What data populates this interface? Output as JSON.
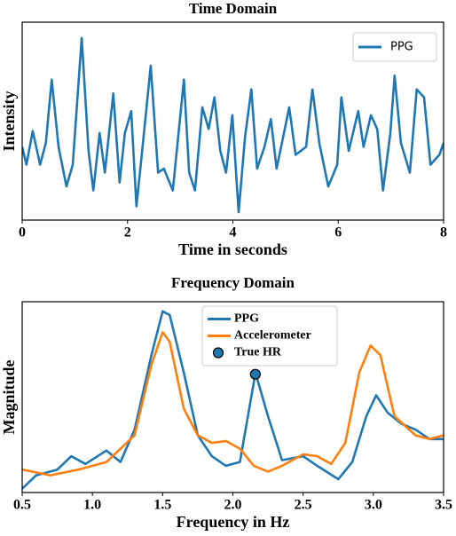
{
  "chart_data": [
    {
      "type": "line",
      "title": "Time Domain",
      "xlabel": "Time in seconds",
      "ylabel": "Intensity",
      "xlim": [
        0,
        8
      ],
      "xticks": [
        0,
        2,
        4,
        6,
        8
      ],
      "ylim": [
        0,
        10
      ],
      "legend": "upper right",
      "legend_font": "sans",
      "series": [
        {
          "name": "PPG",
          "color": "#1f77b4",
          "x": [
            0,
            0.08,
            0.2,
            0.34,
            0.45,
            0.56,
            0.69,
            0.84,
            0.96,
            1.13,
            1.26,
            1.35,
            1.47,
            1.57,
            1.73,
            1.85,
            1.95,
            2.07,
            2.17,
            2.27,
            2.44,
            2.58,
            2.69,
            2.86,
            3.07,
            3.17,
            3.28,
            3.42,
            3.54,
            3.65,
            3.76,
            3.87,
            3.99,
            4.11,
            4.23,
            4.35,
            4.46,
            4.6,
            4.72,
            4.83,
            4.97,
            5.07,
            5.19,
            5.39,
            5.51,
            5.64,
            5.81,
            5.98,
            6.06,
            6.2,
            6.38,
            6.48,
            6.62,
            6.74,
            6.85,
            6.99,
            7.07,
            7.19,
            7.36,
            7.49,
            7.63,
            7.75,
            7.92,
            8
          ],
          "values": [
            3.7,
            2.8,
            4.5,
            2.8,
            3.9,
            7.1,
            3.7,
            1.7,
            2.8,
            9.2,
            3.5,
            1.5,
            4.4,
            2.4,
            6.4,
            1.9,
            4.4,
            5.5,
            0.7,
            3.3,
            7.8,
            2.4,
            2.6,
            1.5,
            7.1,
            2.4,
            1.5,
            5.7,
            4.6,
            6.2,
            3.5,
            2.4,
            5.3,
            0.4,
            4.2,
            6.6,
            2.6,
            3.7,
            5.1,
            2.6,
            4.4,
            5.7,
            3.3,
            3.7,
            6.6,
            3.9,
            1.7,
            2.8,
            6.2,
            3.5,
            5.5,
            3.7,
            5.3,
            4.6,
            1.5,
            4.4,
            7.3,
            3.9,
            2.4,
            6.6,
            6.2,
            2.8,
            3.3,
            3.9
          ]
        }
      ]
    },
    {
      "type": "line",
      "title": "Frequency Domain",
      "xlabel": "Frequency in Hz",
      "ylabel": "Magnitude",
      "xlim": [
        0.5,
        3.5
      ],
      "xticks": [
        0.5,
        {
          "value": 1,
          "label": "1.0"
        },
        1.5,
        {
          "value": 2,
          "label": "2.0"
        },
        2.5,
        {
          "value": 3,
          "label": "3.0"
        },
        3.5
      ],
      "ylim": [
        0,
        10
      ],
      "legend": "upper center",
      "legend_font": "serif",
      "series": [
        {
          "name": "PPG",
          "color": "#1f77b4",
          "x": [
            0.5,
            0.6,
            0.75,
            0.85,
            0.95,
            1.1,
            1.2,
            1.3,
            1.42,
            1.5,
            1.55,
            1.65,
            1.75,
            1.85,
            1.95,
            2.05,
            2.15,
            2.16,
            2.25,
            2.35,
            2.5,
            2.6,
            2.75,
            2.85,
            2.95,
            3.02,
            3.1,
            3.2,
            3.3,
            3.4,
            3.5
          ],
          "values": [
            0.2,
            0.9,
            1.2,
            1.9,
            1.5,
            2.2,
            1.6,
            3.3,
            7.2,
            9.5,
            9.3,
            6.3,
            3.0,
            1.9,
            1.4,
            1.6,
            5.8,
            6.3,
            4.0,
            1.7,
            1.9,
            1.4,
            0.7,
            1.6,
            4.0,
            5.1,
            4.2,
            3.6,
            3.3,
            2.8,
            2.8
          ]
        },
        {
          "name": "Accelerometer",
          "color": "#ff7f0e",
          "x": [
            0.5,
            0.7,
            0.9,
            1.1,
            1.3,
            1.42,
            1.5,
            1.55,
            1.65,
            1.75,
            1.85,
            1.95,
            2.05,
            2.15,
            2.25,
            2.35,
            2.5,
            2.6,
            2.7,
            2.8,
            2.9,
            2.98,
            3.05,
            3.15,
            3.3,
            3.4,
            3.5
          ],
          "values": [
            1.2,
            0.9,
            1.2,
            1.6,
            3.0,
            6.7,
            8.4,
            7.9,
            4.4,
            3.0,
            2.6,
            2.7,
            2.3,
            1.4,
            1.1,
            1.4,
            2.0,
            1.9,
            1.5,
            2.6,
            6.3,
            7.7,
            7.2,
            4.0,
            3.0,
            2.8,
            3.0
          ]
        },
        {
          "name": "True HR",
          "color": "#1f77b4",
          "type": "scatter",
          "x": [
            2.16
          ],
          "values": [
            6.2
          ]
        }
      ]
    }
  ]
}
